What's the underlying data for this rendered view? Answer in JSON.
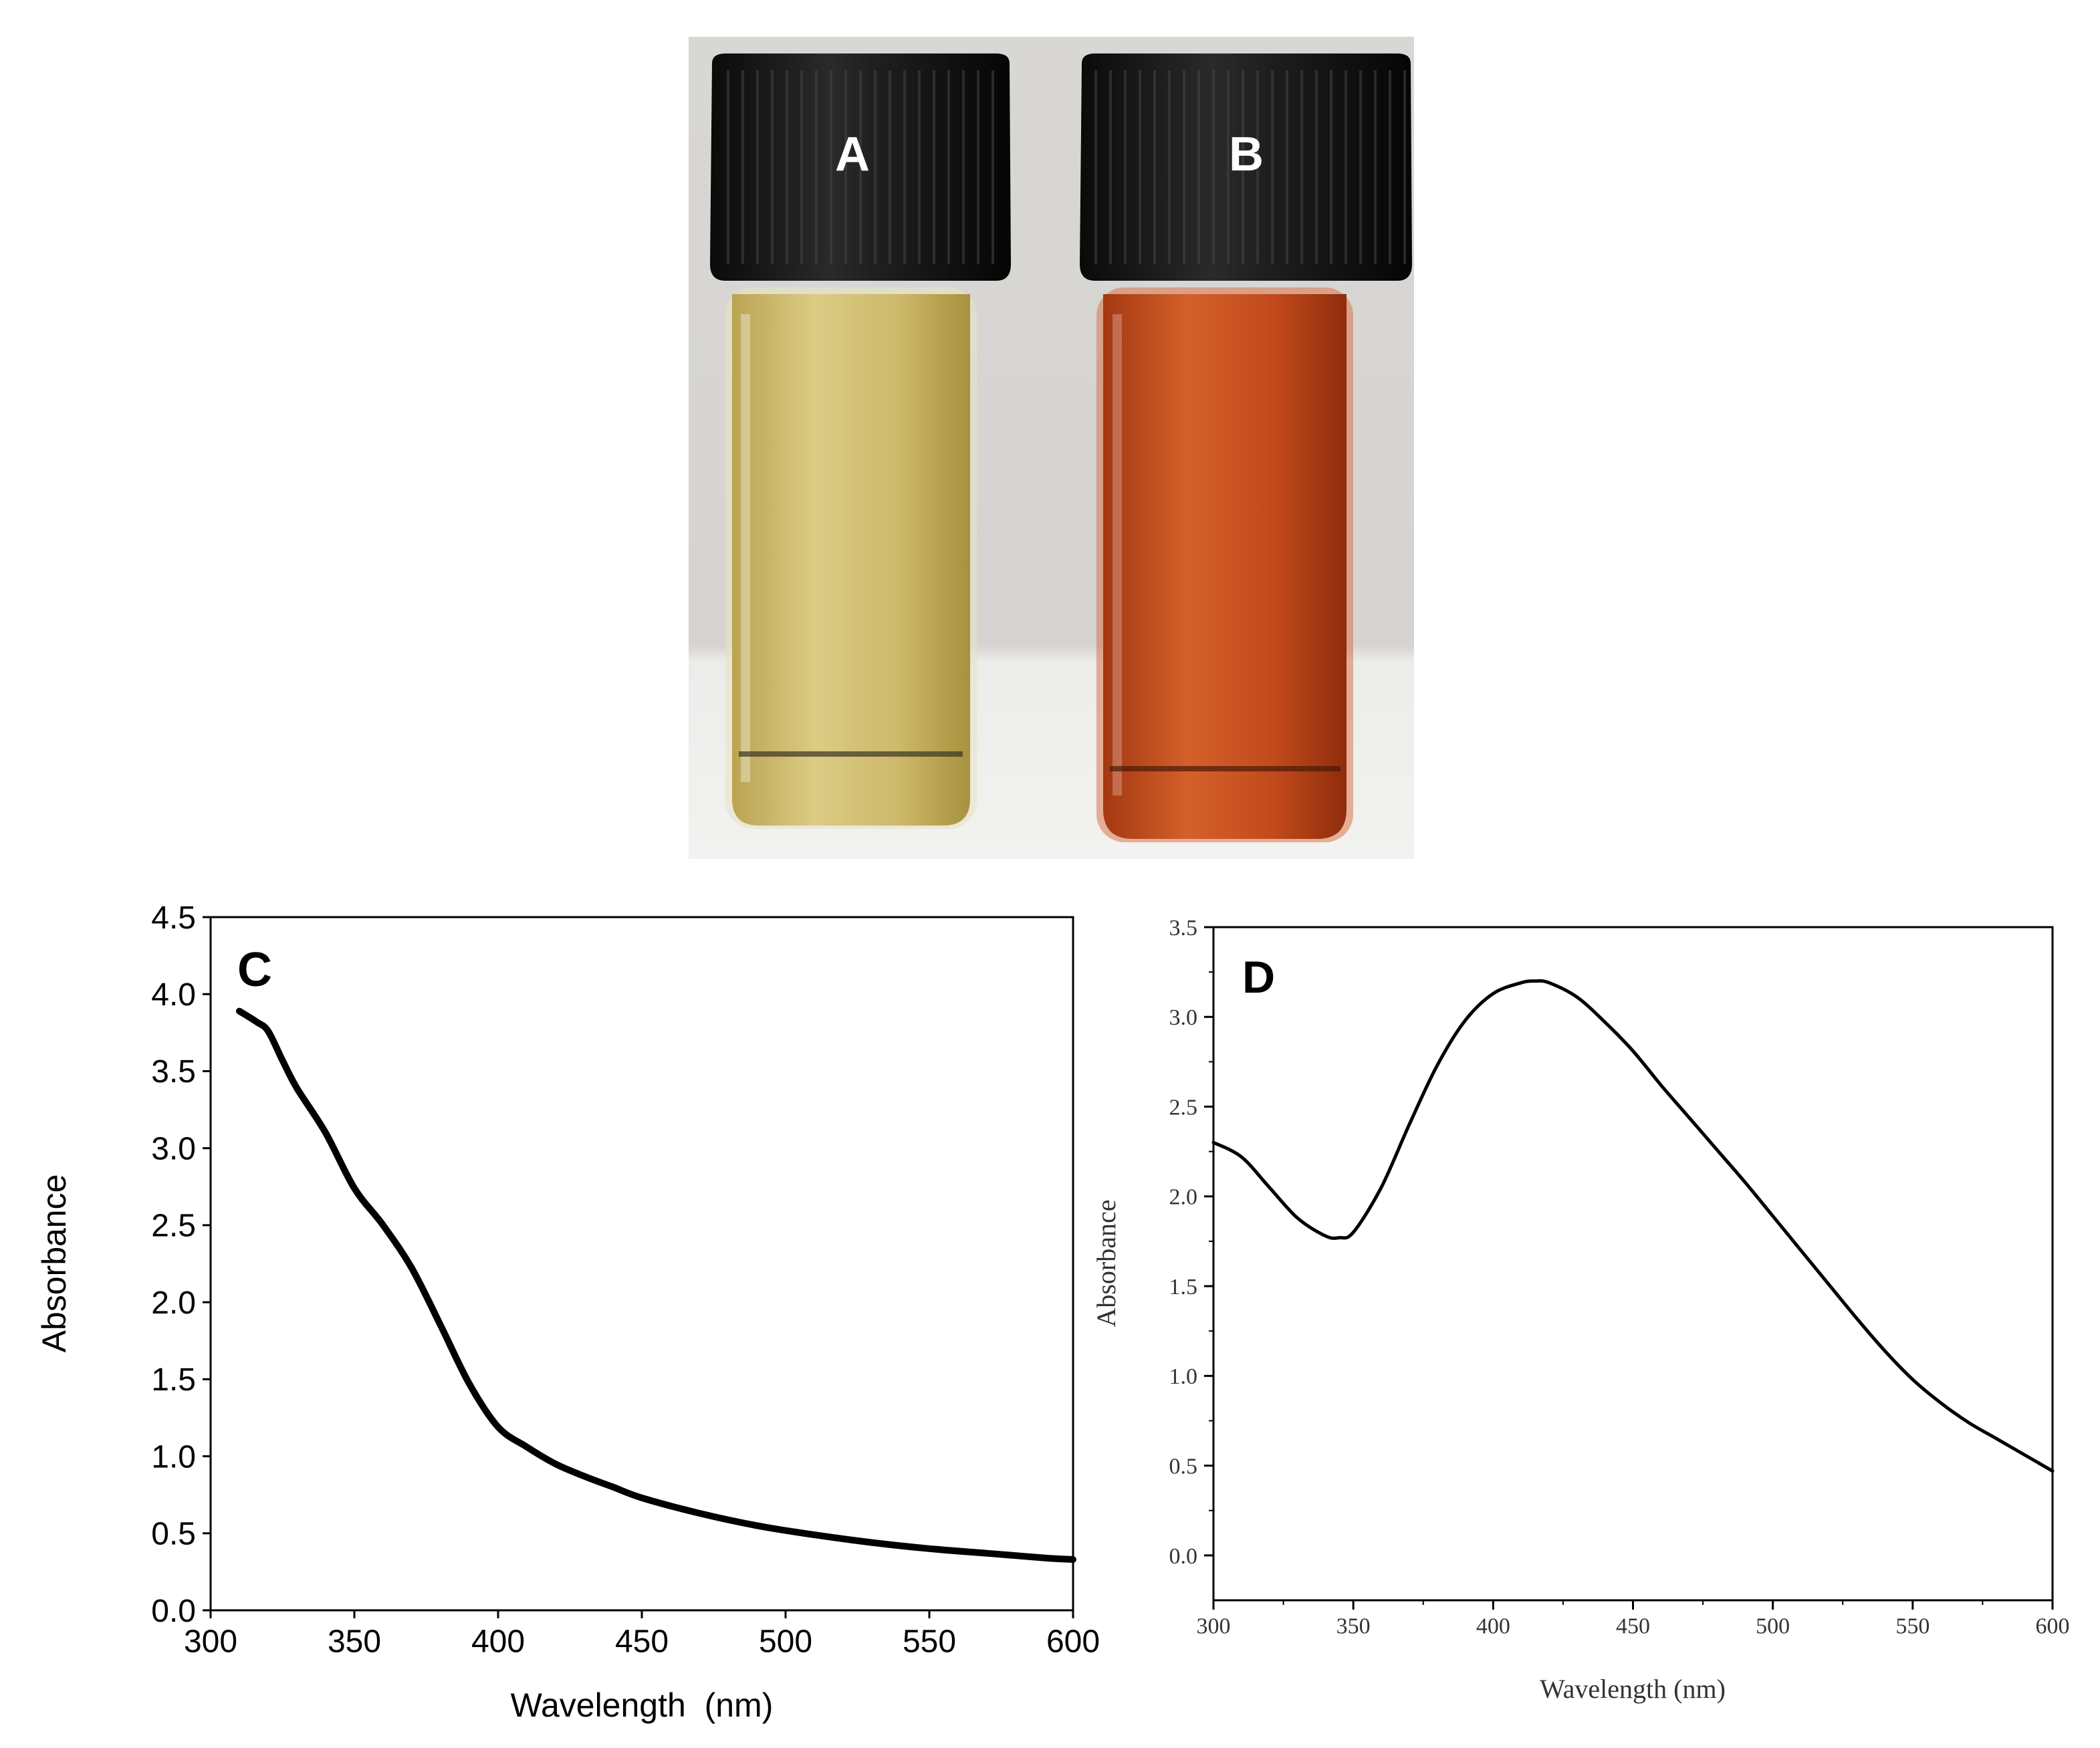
{
  "panels": {
    "A": {
      "label": "A",
      "solution_color": "#cdb96a"
    },
    "B": {
      "label": "B",
      "solution_color": "#c24a1c"
    }
  },
  "chart_data": [
    {
      "panel": "C",
      "type": "line",
      "xlabel": "Wavelength  (nm)",
      "ylabel": "Absorbance",
      "xlim": [
        300,
        600
      ],
      "ylim": [
        0,
        4.5
      ],
      "xticks": [
        "300",
        "350",
        "400",
        "450",
        "500",
        "550",
        "600"
      ],
      "yticks": [
        "0.0",
        "0.5",
        "1.0",
        "1.5",
        "2.0",
        "2.5",
        "3.0",
        "3.5",
        "4.0",
        "4.5"
      ],
      "series": [
        {
          "x": [
            310,
            316,
            320,
            325,
            330,
            340,
            350,
            360,
            370,
            380,
            390,
            400,
            410,
            420,
            430,
            440,
            450,
            470,
            490,
            510,
            530,
            550,
            570,
            590,
            600
          ],
          "y": [
            3.89,
            3.82,
            3.76,
            3.57,
            3.39,
            3.1,
            2.74,
            2.5,
            2.22,
            1.85,
            1.47,
            1.19,
            1.06,
            0.95,
            0.87,
            0.8,
            0.73,
            0.63,
            0.55,
            0.49,
            0.44,
            0.4,
            0.37,
            0.34,
            0.33
          ]
        }
      ],
      "grid": false,
      "line_color": "#000000"
    },
    {
      "panel": "D",
      "type": "line",
      "xlabel": "Wavelength (nm)",
      "ylabel": "Absorbance",
      "xlim": [
        300,
        600
      ],
      "ylim": [
        -0.25,
        3.5
      ],
      "xticks": [
        "300",
        "350",
        "400",
        "450",
        "500",
        "550",
        "600"
      ],
      "yticks": [
        "0.0",
        "0.5",
        "1.0",
        "1.5",
        "2.0",
        "2.5",
        "3.0",
        "3.5"
      ],
      "series": [
        {
          "x": [
            300,
            310,
            320,
            330,
            340,
            345,
            350,
            360,
            370,
            380,
            390,
            400,
            410,
            415,
            420,
            430,
            440,
            450,
            460,
            470,
            480,
            490,
            500,
            510,
            520,
            530,
            540,
            550,
            560,
            570,
            580,
            590,
            600
          ],
          "y": [
            2.3,
            2.22,
            2.05,
            1.88,
            1.78,
            1.77,
            1.8,
            2.05,
            2.4,
            2.73,
            2.98,
            3.13,
            3.19,
            3.2,
            3.19,
            3.11,
            2.97,
            2.81,
            2.62,
            2.44,
            2.26,
            2.08,
            1.89,
            1.7,
            1.51,
            1.32,
            1.14,
            0.98,
            0.85,
            0.74,
            0.65,
            0.56,
            0.47
          ]
        }
      ],
      "grid": false,
      "line_color": "#000000"
    }
  ]
}
